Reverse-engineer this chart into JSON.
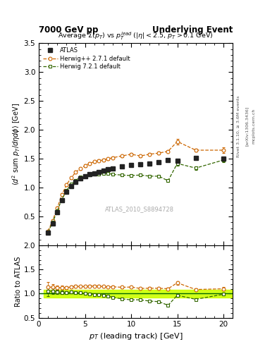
{
  "title_left": "7000 GeV pp",
  "title_right": "Underlying Event",
  "plot_title": "Average $\\Sigma(p_T)$ vs $p_T^{lead}$ ($|\\eta| < 2.5$, $p_T > 0.1$ GeV)",
  "ylabel_main": "$\\langle d^2$ sum $p_T/d\\eta d\\phi\\rangle$ [GeV]",
  "ylabel_ratio": "Ratio to ATLAS",
  "xlabel": "$p_T$ (leading track) [GeV]",
  "watermark": "ATLAS_2010_S8894728",
  "rivet_label": "Rivet 3.1.10, ≥ 3.6M events",
  "arxiv_label": "[arXiv:1306.3436]",
  "mcplots_label": "mcplots.cern.ch",
  "atlas_x": [
    1.0,
    1.5,
    2.0,
    2.5,
    3.0,
    3.5,
    4.0,
    4.5,
    5.0,
    5.5,
    6.0,
    6.5,
    7.0,
    7.5,
    8.0,
    9.0,
    10.0,
    11.0,
    12.0,
    13.0,
    14.0,
    15.0,
    17.0,
    20.0
  ],
  "atlas_y": [
    0.22,
    0.38,
    0.58,
    0.78,
    0.93,
    1.03,
    1.1,
    1.16,
    1.2,
    1.23,
    1.25,
    1.27,
    1.29,
    1.32,
    1.33,
    1.37,
    1.39,
    1.4,
    1.42,
    1.44,
    1.48,
    1.47,
    1.52,
    1.5
  ],
  "atlas_yerr": [
    0.01,
    0.01,
    0.015,
    0.015,
    0.015,
    0.015,
    0.015,
    0.015,
    0.015,
    0.015,
    0.015,
    0.015,
    0.015,
    0.015,
    0.015,
    0.015,
    0.015,
    0.015,
    0.015,
    0.015,
    0.015,
    0.015,
    0.02,
    0.02
  ],
  "hpp_x": [
    1.0,
    1.5,
    2.0,
    2.5,
    3.0,
    3.5,
    4.0,
    4.5,
    5.0,
    5.5,
    6.0,
    6.5,
    7.0,
    7.5,
    8.0,
    9.0,
    10.0,
    11.0,
    12.0,
    13.0,
    14.0,
    15.0,
    17.0,
    20.0
  ],
  "hpp_y": [
    0.25,
    0.43,
    0.65,
    0.88,
    1.05,
    1.17,
    1.27,
    1.33,
    1.38,
    1.42,
    1.45,
    1.47,
    1.48,
    1.5,
    1.52,
    1.55,
    1.58,
    1.55,
    1.58,
    1.6,
    1.63,
    1.8,
    1.65,
    1.65
  ],
  "hpp_yerr": [
    0.02,
    0.02,
    0.02,
    0.02,
    0.02,
    0.02,
    0.02,
    0.02,
    0.02,
    0.02,
    0.02,
    0.02,
    0.02,
    0.02,
    0.02,
    0.02,
    0.02,
    0.02,
    0.02,
    0.02,
    0.02,
    0.05,
    0.03,
    0.05
  ],
  "h721_x": [
    1.0,
    1.5,
    2.0,
    2.5,
    3.0,
    3.5,
    4.0,
    4.5,
    5.0,
    5.5,
    6.0,
    6.5,
    7.0,
    7.5,
    8.0,
    9.0,
    10.0,
    11.0,
    12.0,
    13.0,
    14.0,
    15.0,
    17.0,
    20.0
  ],
  "h721_y": [
    0.23,
    0.4,
    0.6,
    0.8,
    0.95,
    1.06,
    1.13,
    1.18,
    1.2,
    1.22,
    1.23,
    1.24,
    1.25,
    1.25,
    1.23,
    1.22,
    1.21,
    1.22,
    1.2,
    1.2,
    1.12,
    1.42,
    1.34,
    1.48
  ],
  "h721_yerr": [
    0.02,
    0.02,
    0.02,
    0.02,
    0.02,
    0.02,
    0.02,
    0.02,
    0.02,
    0.02,
    0.02,
    0.02,
    0.02,
    0.02,
    0.02,
    0.02,
    0.02,
    0.02,
    0.02,
    0.02,
    0.02,
    0.04,
    0.03,
    0.04
  ],
  "atlas_color": "#222222",
  "hpp_color": "#cc6600",
  "h721_color": "#336600",
  "ratio_band_color": "#ccff00",
  "ylim_main": [
    0.0,
    3.5
  ],
  "ylim_ratio": [
    0.5,
    2.0
  ],
  "xlim": [
    0.5,
    21.0
  ],
  "xticks": [
    0,
    5,
    10,
    15,
    20
  ],
  "yticks_main": [
    0.5,
    1.0,
    1.5,
    2.0,
    2.5,
    3.0,
    3.5
  ],
  "yticks_ratio": [
    0.5,
    1.0,
    1.5,
    2.0
  ]
}
